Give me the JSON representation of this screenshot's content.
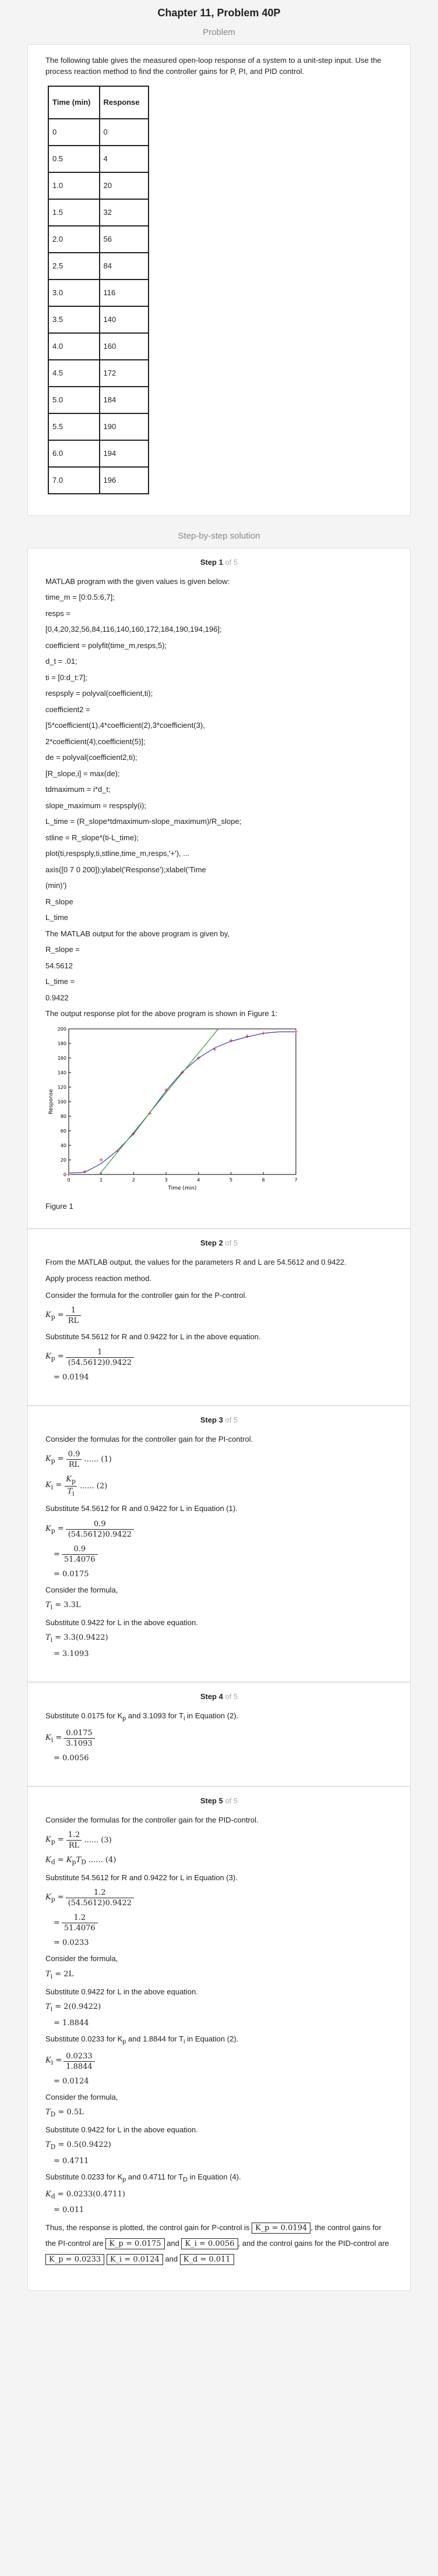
{
  "title": "Chapter 11, Problem 40P",
  "problem_label": "Problem",
  "problem_text": "The following table gives the measured open-loop response of a system to a unit-step input. Use the process reaction method to find the controller gains for P, PI, and PID control.",
  "table": {
    "headers": [
      "Time (min)",
      "Response"
    ],
    "rows": [
      [
        "0",
        "0"
      ],
      [
        "0.5",
        "4"
      ],
      [
        "1.0",
        "20"
      ],
      [
        "1.5",
        "32"
      ],
      [
        "2.0",
        "56"
      ],
      [
        "2.5",
        "84"
      ],
      [
        "3.0",
        "116"
      ],
      [
        "3.5",
        "140"
      ],
      [
        "4.0",
        "160"
      ],
      [
        "4.5",
        "172"
      ],
      [
        "5.0",
        "184"
      ],
      [
        "5.5",
        "190"
      ],
      [
        "6.0",
        "194"
      ],
      [
        "7.0",
        "196"
      ]
    ]
  },
  "solution_label": "Step-by-step solution",
  "steps": [
    {
      "label": "Step 1",
      "of": "of 5"
    },
    {
      "label": "Step 2",
      "of": "of 5"
    },
    {
      "label": "Step 3",
      "of": "of 5"
    },
    {
      "label": "Step 4",
      "of": "of 5"
    },
    {
      "label": "Step 5",
      "of": "of 5"
    }
  ],
  "step1": {
    "lines": [
      "MATLAB program with the given values is given below:",
      "time_m = [0:0.5:6,7];",
      "resps =",
      "[0,4,20,32,56,84,116,140,160,172,184,190,194,196];",
      "coefficient = polyfit(time_m,resps,5);",
      "d_t = .01;",
      "ti = [0:d_t:7];",
      "respsply = polyval(coefficient,ti);",
      "coefficient2 =",
      "[5*coefficient(1),4*coefficient(2),3*coefficient(3),",
      "2*coefficient(4),coefficient(5)];",
      "de = polyval(coefficient2,ti);",
      "[R_slope,i] = max(de);",
      "tdmaximum = i*d_t;",
      "slope_maximum = respsply(i);",
      "L_time = (R_slope*tdmaximum-slope_maximum)/R_slope;",
      "stline = R_slope*(ti-L_time);",
      "plot(ti,respsply,ti,stline,time_m,resps,'+'), ...",
      "axis([0 7 0 200]);ylabel('Response');xlabel('Time",
      "(min)')",
      "R_slope",
      "L_time",
      "The MATLAB output for the above program is given by,",
      "R_slope =",
      "54.5612",
      "L_time =",
      "0.9422",
      "The output response plot for the above program is shown in Figure 1:"
    ],
    "figure_label": "Figure 1"
  },
  "chart_data": {
    "type": "line",
    "xlabel": "Time (min)",
    "ylabel": "Response",
    "xlim": [
      0,
      7
    ],
    "ylim": [
      0,
      200
    ],
    "xticks": [
      0,
      1,
      2,
      3,
      4,
      5,
      6,
      7
    ],
    "yticks": [
      0,
      20,
      40,
      60,
      80,
      100,
      120,
      140,
      160,
      180,
      200
    ],
    "grid": false,
    "series": [
      {
        "style": "polyfit-curve",
        "color": "#3a3ab8",
        "x": [
          0,
          0.5,
          1,
          1.5,
          2,
          2.5,
          3,
          3.5,
          4,
          4.5,
          5,
          5.5,
          6,
          6.5,
          7
        ],
        "y": [
          2,
          3,
          15,
          33,
          56,
          85,
          115,
          141,
          160,
          174,
          183,
          189,
          194,
          196,
          196
        ]
      },
      {
        "style": "tangent-line",
        "color": "#2e9a2e",
        "x": [
          0.9422,
          4.6
        ],
        "y": [
          0,
          199.6
        ]
      },
      {
        "style": "markers",
        "color": "#cc2a2a",
        "x": [
          0,
          0.5,
          1,
          1.5,
          2,
          2.5,
          3,
          3.5,
          4,
          4.5,
          5,
          5.5,
          6,
          7
        ],
        "y": [
          0,
          4,
          20,
          32,
          56,
          84,
          116,
          140,
          160,
          172,
          184,
          190,
          194,
          196
        ]
      }
    ]
  },
  "step2": {
    "l1": "From the MATLAB output, the values for the parameters R and L are 54.5612 and 0.9422.",
    "l2": "Apply process reaction method.",
    "l3": "Consider the formula for the controller gain for the P-control.",
    "l4": "Substitute 54.5612 for R and 0.9422 for L in the above equation.",
    "kp": "K",
    "kp_sub": "p",
    "eq": "=",
    "one": "1",
    "rl": "RL",
    "den_num": "(54.5612)0.9422",
    "result": "= 0.0194"
  },
  "step3": {
    "l1": "Consider the formulas for the controller gain for the PI-control.",
    "f1_num": "0.9",
    "f1_den": "RL",
    "f1_tag": "...... (1)",
    "f2_num": "K",
    "f2_num_sub": "p",
    "f2_den": "T",
    "f2_den_sub": "i",
    "f2_tag": "...... (2)",
    "ki": "K",
    "ki_sub": "i",
    "l2": "Substitute 54.5612 for R and 0.9422 for L in Equation (1).",
    "s1_den": "(54.5612)0.9422",
    "s2_den": "51.4076",
    "result1": "= 0.0175",
    "l3": "Consider the formula,",
    "ti_formula": "T",
    "ti_sub": "i",
    "ti_rhs": "= 3.3L",
    "l4": "Substitute 0.9422 for L in the above equation.",
    "ti_sub_eq": "= 3.3(0.9422)",
    "ti_result": "= 3.1093"
  },
  "step4": {
    "l1": "Substitute 0.0175 for  K",
    "l1_sub": "p",
    "l1_mid": " and 3.1093 for  T",
    "l1_sub2": "i",
    "l1_end": " in Equation (2).",
    "num": "0.0175",
    "den": "3.1093",
    "result": "= 0.0056"
  },
  "step5": {
    "l1": "Consider the formulas for the controller gain for the PID-control.",
    "f3_num": "1.2",
    "f3_den": "RL",
    "f3_tag": "...... (3)",
    "f4_rhs": "K",
    "f4_rhs_sub": "p",
    "f4_rhs2": "T",
    "f4_rhs2_sub": "D",
    "f4_tag": "...... (4)",
    "kd": "K",
    "kd_sub": "d",
    "l2": "Substitute 54.5612 for R and 0.9422 for L in Equation (3).",
    "s1_den": "(54.5612)0.9422",
    "s2_den": "51.4076",
    "kp_result": "= 0.0233",
    "l3": "Consider the formula,",
    "ti_rhs": "= 2L",
    "l4": "Substitute 0.9422 for L in the above equation.",
    "ti_sub_eq": "= 2(0.9422)",
    "ti_result": "= 1.8844",
    "l5": "Substitute 0.0233 for  K",
    "l5_mid": " and 1.8844 for  T",
    "l5_end": " in Equation (2).",
    "ki_num": "0.0233",
    "ki_den": "1.8844",
    "ki_result": "= 0.0124",
    "l6": "Consider the formula,",
    "td_rhs": "= 0.5L",
    "l7": "Substitute 0.9422 for L in the above equation.",
    "td_sub_eq": "= 0.5(0.9422)",
    "td_result": "= 0.4711",
    "l8": "Substitute 0.0233 for  K",
    "l8_mid": " and 0.4711 for  T",
    "l8_end": " in Equation (4).",
    "kd_sub_eq": "= 0.0233(0.4711)",
    "kd_result": "= 0.011",
    "conclusion_a": "Thus, the response is plotted, the control gain for P-control is",
    "box_p": "K_p = 0.0194",
    "conclusion_b": ", the control gains for the PI-control are",
    "box_pi_kp": "K_p = 0.0175",
    "conclusion_c": "and",
    "box_pi_ki": "K_i = 0.0056",
    "conclusion_d": ", and the control gains for the PID-control are",
    "box_pid_kp": "K_p = 0.0233",
    "box_pid_ki": "K_i = 0.0124",
    "box_pid_kd": "K_d = 0.011"
  }
}
